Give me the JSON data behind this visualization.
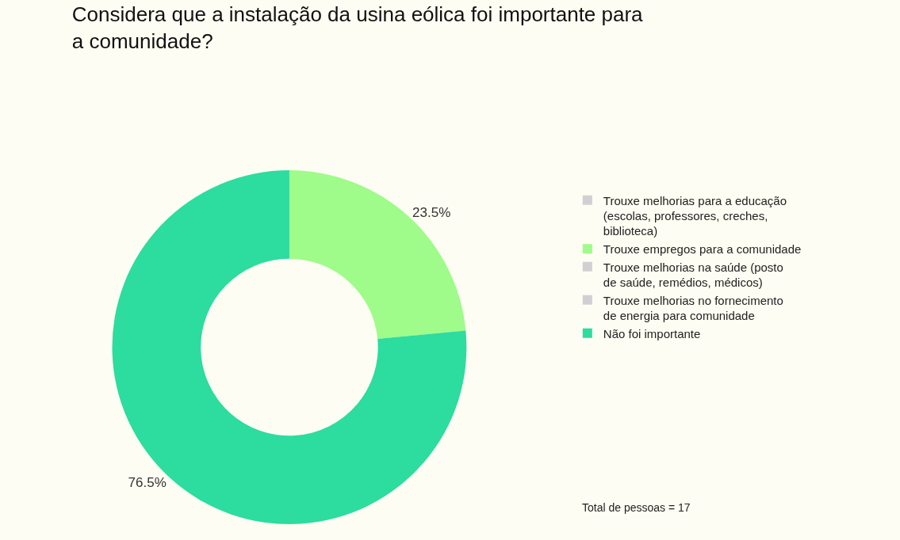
{
  "chart_data": {
    "type": "donut",
    "title": "Considera que a instalação da usina eólica foi importante para a comunidade?",
    "categories": [
      "Trouxe melhorias para a educação (escolas, professores, creches, biblioteca)",
      "Trouxe empregos para a comunidade",
      "Trouxe melhorias na saúde (posto de saúde, remédios, médicos)",
      "Trouxe melhorias no fornecimento de energia para comunidade",
      "Não foi importante"
    ],
    "values": [
      0,
      23.5,
      0,
      0,
      76.5
    ],
    "colors": [
      "#d0d0d4",
      "#9ffb8a",
      "#d0d0d4",
      "#d0d0d4",
      "#2ddc9f"
    ],
    "value_labels": [
      null,
      "23.5%",
      null,
      null,
      "76.5%"
    ],
    "legend": "right",
    "annotations": [
      "Total de pessoas = 17"
    ]
  }
}
